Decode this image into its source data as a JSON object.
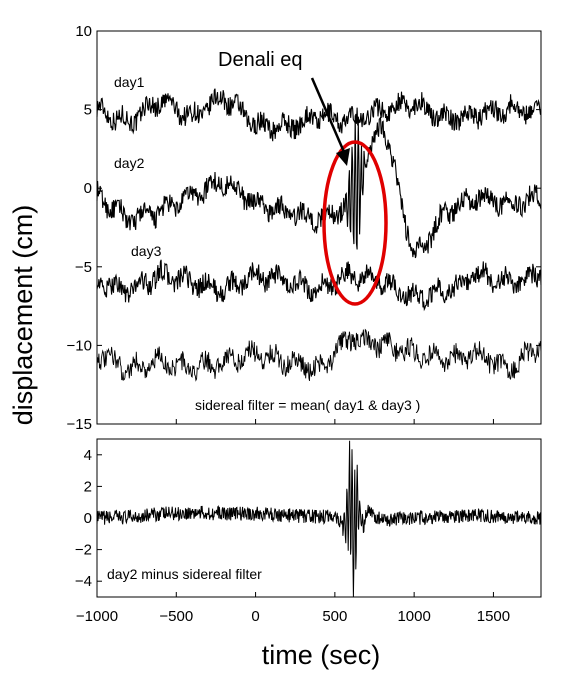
{
  "chart_data": [
    {
      "type": "line",
      "ylabel": "displacement (cm)",
      "ylim": [
        -15,
        10
      ],
      "yticks": [
        "10",
        "5",
        "0",
        "−5",
        "−10",
        "−15"
      ],
      "xlim": [
        -1000,
        1800
      ],
      "grid": false,
      "series": [
        {
          "name": "day1",
          "offset_cm": 5,
          "values": [
            5.0,
            4.2,
            5.6,
            4.5,
            5.8,
            4.0,
            3.9,
            4.6,
            4.3,
            5.0,
            5.4,
            4.4,
            4.7,
            5.1,
            4.9
          ]
        },
        {
          "name": "day2",
          "offset_cm": 0,
          "values": [
            -0.5,
            -2.0,
            -1.5,
            -0.5,
            0.5,
            -1.0,
            -1.5,
            -2.0,
            -1.0,
            4.5,
            -4.5,
            -1.5,
            -0.5,
            -1.0,
            -0.5
          ]
        },
        {
          "name": "day3",
          "offset_cm": -5,
          "values": [
            -6.0,
            -6.5,
            -5.5,
            -6.0,
            -6.5,
            -5.5,
            -6.0,
            -6.5,
            -5.5,
            -6.0,
            -7.0,
            -6.5,
            -5.5,
            -6.0,
            -5.5
          ]
        },
        {
          "name": "",
          "offset_cm": -11,
          "values": [
            -10.5,
            -11.5,
            -11.0,
            -11.5,
            -11.0,
            -10.5,
            -11.0,
            -11.5,
            -9.5,
            -10.0,
            -10.5,
            -11.0,
            -10.5,
            -11.5,
            -10.0
          ]
        }
      ],
      "annotations": {
        "filter_note": "sidereal filter = mean( day1 & day3 )",
        "event_label": "Denali eq",
        "event_time": 640
      }
    },
    {
      "type": "line",
      "xlabel": "time (sec)",
      "xlim": [
        -1000,
        1800
      ],
      "ylim": [
        -5,
        5
      ],
      "xticks": [
        "−1000",
        "−500",
        "0",
        "500",
        "1000",
        "1500"
      ],
      "yticks": [
        "4",
        "2",
        "0",
        "−2",
        "−4"
      ],
      "series": [
        {
          "name": "day2 minus sidereal filter",
          "x": [
            -1000,
            -800,
            -600,
            -400,
            -200,
            0,
            200,
            400,
            500,
            560,
            600,
            620,
            640,
            680,
            700,
            800,
            1000,
            1200,
            1400,
            1600,
            1800
          ],
          "values": [
            0.0,
            0.2,
            0.9,
            1.1,
            1.0,
            0.9,
            0.6,
            0.2,
            0.5,
            -1.5,
            4.5,
            -4.5,
            3.0,
            -2.5,
            1.5,
            -0.5,
            0.0,
            0.3,
            0.5,
            0.2,
            0.0
          ]
        }
      ],
      "annotations": {
        "label": "day2 minus sidereal filter"
      }
    }
  ]
}
